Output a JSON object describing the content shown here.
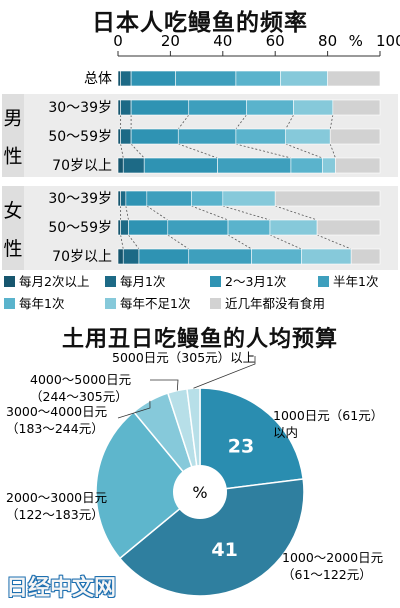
{
  "bar_title": "日本人吃鳗鱼的频率",
  "pie_title": "土用丑日吃鳗鱼的人均预算",
  "watermark": "日经中文网",
  "colors": [
    "#17566e",
    "#1d6a86",
    "#2f93b3",
    "#3e9fbd",
    "#5ab3cc",
    "#86c9da",
    "#d2d2d2"
  ],
  "pie_colors": [
    "#2a8db0",
    "#2f7f9f",
    "#5eb6cc",
    "#86c9da",
    "#b7dfe8"
  ],
  "chart_data": [
    {
      "type": "bar",
      "orientation": "horizontal",
      "stacked": true,
      "title": "日本人吃鳗鱼的频率",
      "xlim": [
        0,
        100
      ],
      "xticks": [
        0,
        20,
        40,
        60,
        80,
        100
      ],
      "xunit": "%",
      "groups": [
        {
          "label": "",
          "rows": [
            "总体"
          ]
        },
        {
          "label": "男性",
          "rows": [
            "30～39岁",
            "50～59岁",
            "70岁以上"
          ]
        },
        {
          "label": "女性",
          "rows": [
            "30～39岁",
            "50～59岁",
            "70岁以上"
          ]
        }
      ],
      "categories": [
        "总体",
        "30～39岁",
        "50～59岁",
        "70岁以上",
        "30～39岁",
        "50～59岁",
        "70岁以上"
      ],
      "series": [
        {
          "name": "每月2次以上",
          "values": [
            1,
            1,
            1,
            2,
            1,
            1,
            2
          ]
        },
        {
          "name": "每月1次",
          "values": [
            4,
            4,
            4,
            8,
            2,
            3,
            6
          ]
        },
        {
          "name": "2～3月1次",
          "values": [
            17,
            22,
            18,
            28,
            8,
            15,
            19
          ]
        },
        {
          "name": "半年1次",
          "values": [
            23,
            22,
            22,
            28,
            17,
            23,
            24
          ]
        },
        {
          "name": "每年1次",
          "values": [
            17,
            18,
            19,
            12,
            12,
            16,
            19
          ]
        },
        {
          "name": "每年不足1次",
          "values": [
            18,
            15,
            17,
            5,
            20,
            18,
            19
          ]
        },
        {
          "name": "近几年都没有食用",
          "values": [
            20,
            18,
            19,
            17,
            40,
            24,
            11
          ]
        }
      ],
      "legend_position": "bottom"
    },
    {
      "type": "pie",
      "title": "土用丑日吃鳗鱼的人均预算",
      "center_label": "%",
      "slices": [
        {
          "label": "1000日元（61元）以内",
          "value": 23
        },
        {
          "label": "1000～2000日元（61～122元）",
          "value": 41
        },
        {
          "label": "2000～3000日元（122～183元）",
          "value": 25
        },
        {
          "label": "3000～4000日元（183～244元）",
          "value": 6
        },
        {
          "label": "4000～5000日元（244～305元）",
          "value": 3
        },
        {
          "label": "5000日元（305元）以上",
          "value": 2
        }
      ],
      "slice_labels": [
        {
          "lines": [
            "1000日元（61元）",
            "以内"
          ]
        },
        {
          "lines": [
            "1000～2000日元",
            "（61～122元）"
          ]
        },
        {
          "lines": [
            "2000～3000日元",
            "（122～183元）"
          ]
        },
        {
          "lines": [
            "3000～4000日元",
            "（183～244元）"
          ]
        },
        {
          "lines": [
            "4000～5000日元",
            "（244～305元）"
          ]
        },
        {
          "lines": [
            "5000日元（305元）以上"
          ]
        }
      ],
      "value_labels_shown": [
        23,
        41
      ]
    }
  ]
}
